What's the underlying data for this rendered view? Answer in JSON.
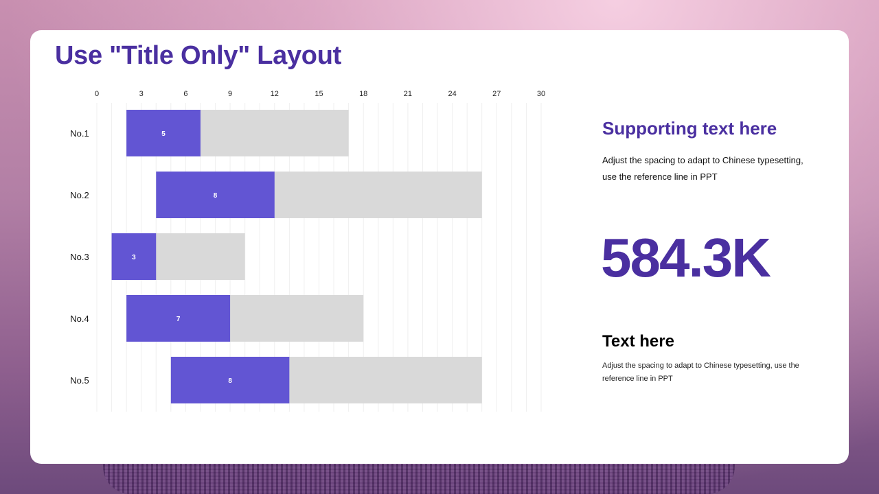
{
  "slide": {
    "title": "Use \"Title Only\" Layout"
  },
  "sidebar": {
    "support_title": "Supporting text here",
    "support_body": "Adjust the spacing to adapt to Chinese typesetting, use the reference line in PPT",
    "big_number": "584.3K",
    "text_title": "Text here",
    "text_body": "Adjust the spacing to adapt to Chinese typesetting, use the reference line in PPT"
  },
  "colors": {
    "accent": "#4a2fa0",
    "bar_fill": "#6255d3",
    "bar_bg": "#d9d9d9"
  },
  "chart_data": {
    "type": "bar",
    "orientation": "horizontal",
    "stacked": true,
    "categories": [
      "No.1",
      "No.2",
      "No.3",
      "No.4",
      "No.5"
    ],
    "starts": [
      2,
      4,
      1,
      2,
      5
    ],
    "series": [
      {
        "values": [
          5,
          8,
          3,
          7,
          8
        ]
      },
      {
        "values": [
          10,
          14,
          6,
          9,
          13
        ]
      }
    ],
    "data_labels": [
      "5",
      "8",
      "3",
      "7",
      "8"
    ],
    "xlim": [
      0,
      30
    ],
    "xticks": [
      0,
      3,
      6,
      9,
      12,
      15,
      18,
      21,
      24,
      27,
      30
    ],
    "x_axis_position": "top",
    "grid": true
  }
}
